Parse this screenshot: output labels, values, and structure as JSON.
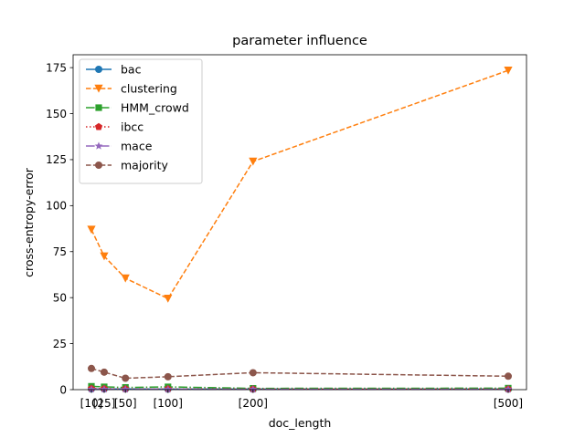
{
  "chart_data": {
    "type": "line",
    "title": "parameter influence",
    "xlabel": "doc_length",
    "ylabel": "cross-entropy-error",
    "x": [
      10,
      25,
      50,
      100,
      200,
      500
    ],
    "xtick_labels": [
      "[10]",
      "[25]",
      "[50]",
      "[100]",
      "[200]",
      "[500]"
    ],
    "xlim": [
      -11.5,
      521.5
    ],
    "ylim": [
      0,
      182
    ],
    "yticks": [
      0,
      25,
      50,
      75,
      100,
      125,
      150,
      175
    ],
    "grid": false,
    "legend_position": "upper-left",
    "series": [
      {
        "name": "bac",
        "color": "#1f77b4",
        "dash": "solid",
        "marker": "circle",
        "values": [
          0.4,
          0.4,
          0.4,
          0.3,
          0.3,
          0.3
        ]
      },
      {
        "name": "clustering",
        "color": "#ff7f0e",
        "dash": "dashed",
        "marker": "triangle-down",
        "values": [
          87,
          72.5,
          60.5,
          49.5,
          124,
          173.5
        ]
      },
      {
        "name": "HMM_crowd",
        "color": "#2ca02c",
        "dash": "dashdot",
        "marker": "square",
        "values": [
          1.8,
          1.5,
          1.2,
          1.5,
          0.7,
          0.8
        ]
      },
      {
        "name": "ibcc",
        "color": "#d62728",
        "dash": "dotted",
        "marker": "pentagon",
        "values": [
          0.6,
          0.5,
          0.4,
          0.4,
          0.3,
          0.3
        ]
      },
      {
        "name": "mace",
        "color": "#9467bd",
        "dash": "dashdot",
        "marker": "star",
        "values": [
          0.2,
          0.2,
          0.2,
          0.2,
          0.2,
          0.2
        ]
      },
      {
        "name": "majority",
        "color": "#8c564b",
        "dash": "dashed",
        "marker": "circle",
        "values": [
          11.5,
          9.5,
          6.2,
          7.0,
          9.2,
          7.3
        ]
      }
    ]
  }
}
